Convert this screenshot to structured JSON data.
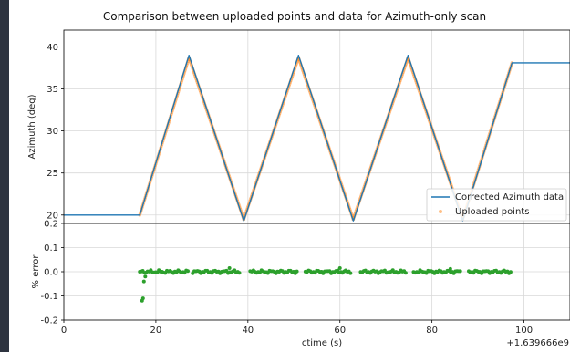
{
  "chart_data": [
    {
      "type": "line",
      "title": "Comparison between uploaded points and data for Azimuth-only scan",
      "xlabel": "",
      "ylabel": "Azimuth (deg)",
      "xlim": [
        0,
        110
      ],
      "ylim": [
        19,
        42
      ],
      "yticks": [
        20,
        25,
        30,
        35,
        40
      ],
      "xticks": [
        0,
        20,
        40,
        60,
        80,
        100
      ],
      "grid": true,
      "legend_position": "lower-right",
      "series": [
        {
          "name": "Corrected Azimuth data",
          "color": "#1f77b4",
          "style": "line",
          "x": [
            0,
            16.5,
            27.2,
            39.1,
            51.0,
            62.9,
            74.8,
            86.7,
            97.4,
            110
          ],
          "y": [
            20,
            20,
            39.0,
            19.3,
            39.0,
            19.3,
            39.0,
            19.3,
            38.1,
            38.1
          ]
        },
        {
          "name": "Uploaded points",
          "color": "#ff7f0e",
          "style": "markers",
          "x": [
            16.5,
            27.2,
            39.1,
            51.0,
            62.9,
            74.8,
            86.7,
            97.4
          ],
          "y": [
            20.0,
            38.7,
            19.5,
            38.7,
            19.5,
            38.7,
            19.5,
            38.1
          ]
        }
      ]
    },
    {
      "type": "scatter",
      "title": "",
      "xlabel": "ctime (s)",
      "ylabel": "% error",
      "xlim": [
        0,
        110
      ],
      "ylim": [
        -0.2,
        0.2
      ],
      "yticks": [
        -0.2,
        -0.1,
        0.0,
        0.1,
        0.2
      ],
      "xticks": [
        0,
        20,
        40,
        60,
        80,
        100
      ],
      "xtick_labels": [
        "0",
        "20",
        "40",
        "60",
        "80",
        "100"
      ],
      "offset_label": "+1.639666e9",
      "grid": true,
      "series": [
        {
          "name": "",
          "color": "#2ca02c",
          "style": "markers",
          "segments": [
            [
              16.8,
              27.0
            ],
            [
              28.0,
              38.5
            ],
            [
              40.5,
              50.7
            ],
            [
              52.5,
              62.5
            ],
            [
              64.5,
              74.3
            ],
            [
              76.0,
              86.2
            ],
            [
              88.0,
              97.2
            ]
          ],
          "step": 0.35,
          "spikes": [
            [
              16.5,
              0.0
            ],
            [
              17.0,
              -0.12
            ],
            [
              17.2,
              -0.11
            ],
            [
              17.4,
              -0.04
            ],
            [
              17.7,
              -0.02
            ],
            [
              36.0,
              0.015
            ],
            [
              60.0,
              0.015
            ],
            [
              84.0,
              0.012
            ]
          ]
        }
      ]
    }
  ]
}
